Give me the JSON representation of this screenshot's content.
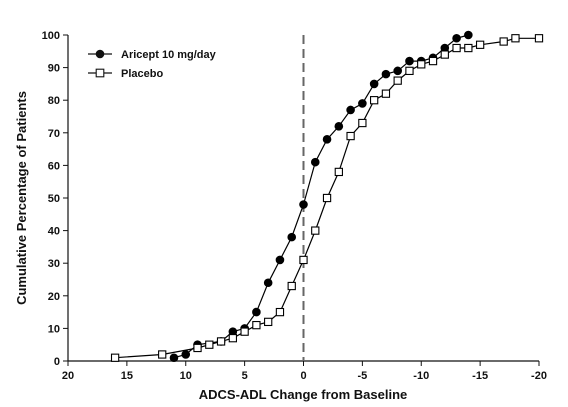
{
  "chart_data": {
    "type": "line",
    "xlabel": "ADCS-ADL Change from Baseline",
    "ylabel": "Cumulative Percentage of Patients",
    "xlim": [
      20,
      -20
    ],
    "ylim": [
      0,
      100
    ],
    "x_ticks": [
      20,
      15,
      10,
      5,
      0,
      -5,
      -10,
      -15,
      -20
    ],
    "x_tick_labels": [
      "20",
      "15",
      "10",
      "5",
      "0",
      "-5",
      "-10",
      "-15",
      "-20"
    ],
    "y_ticks": [
      0,
      10,
      20,
      30,
      40,
      50,
      60,
      70,
      80,
      90,
      100
    ],
    "y_tick_labels": [
      "0",
      "10",
      "20",
      "30",
      "40",
      "50",
      "60",
      "70",
      "80",
      "90",
      "100"
    ],
    "reference_line_x": 0,
    "legend_position": "top-left",
    "series": [
      {
        "name": "Aricept 10 mg/day",
        "marker": "filled-circle",
        "color": "#000000",
        "x": [
          11,
          10,
          9,
          7,
          6,
          5,
          4,
          3,
          2,
          1,
          0,
          -1,
          -2,
          -3,
          -4,
          -5,
          -6,
          -7,
          -8,
          -9,
          -10,
          -11,
          -12,
          -13,
          -14
        ],
        "y": [
          1,
          2,
          5,
          6,
          9,
          10,
          15,
          24,
          31,
          38,
          48,
          61,
          68,
          72,
          77,
          79,
          85,
          88,
          89,
          92,
          92,
          93,
          96,
          99,
          100
        ]
      },
      {
        "name": "Placebo",
        "marker": "open-square",
        "color": "#000000",
        "x": [
          16,
          12,
          9,
          8,
          7,
          6,
          5,
          4,
          3,
          2,
          1,
          0,
          -1,
          -2,
          -3,
          -4,
          -5,
          -6,
          -7,
          -8,
          -9,
          -10,
          -11,
          -12,
          -13,
          -14,
          -15,
          -17,
          -18,
          -20
        ],
        "y": [
          1,
          2,
          4,
          5,
          6,
          7,
          9,
          11,
          12,
          15,
          23,
          31,
          40,
          50,
          58,
          69,
          73,
          80,
          82,
          86,
          89,
          91,
          92,
          94,
          96,
          96,
          97,
          98,
          99,
          99
        ]
      }
    ]
  }
}
